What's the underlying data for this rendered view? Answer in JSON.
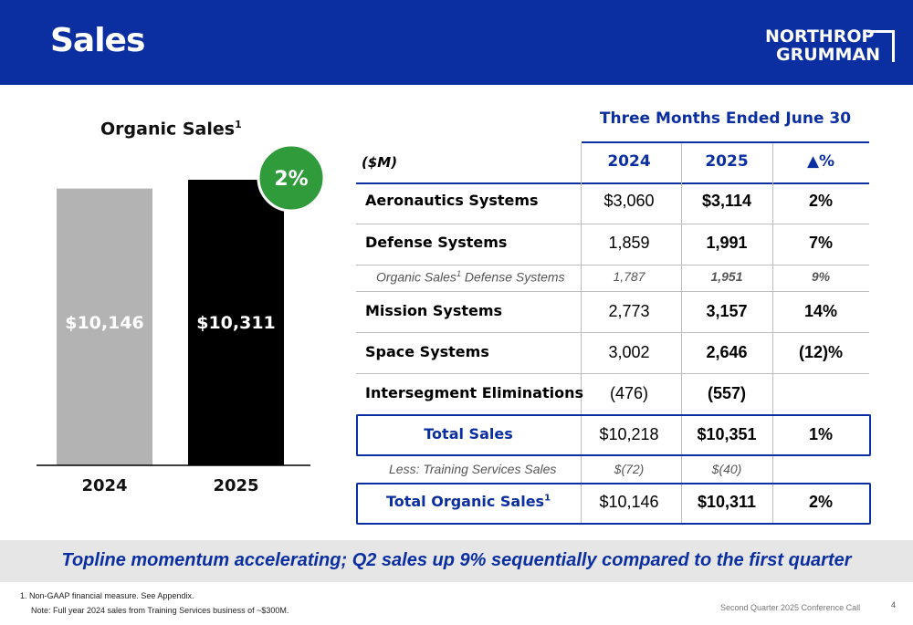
{
  "header": {
    "title": "Sales",
    "logo_line1": "NORTHROP",
    "logo_line2": "GRUMMAN"
  },
  "chart_data": {
    "type": "bar",
    "title": "Organic Sales",
    "title_superscript": "1",
    "categories": [
      "2024",
      "2025"
    ],
    "values": [
      10146,
      10311
    ],
    "value_labels": [
      "$10,146",
      "$10,311"
    ],
    "colors": [
      "#b3b3b3",
      "#000000"
    ],
    "growth_badge": "2%",
    "badge_color": "#2f9b3a"
  },
  "table": {
    "period": "Three Months Ended June 30",
    "unit_label": "($M)",
    "col_2024": "2024",
    "col_2025": "2025",
    "col_pct": "▲%",
    "rows": [
      {
        "label": "Aeronautics Systems",
        "v2024": "$3,060",
        "v2025": "$3,114",
        "pct": "2%"
      },
      {
        "label": "Defense Systems",
        "v2024": "1,859",
        "v2025": "1,991",
        "pct": "7%"
      },
      {
        "label": "Organic Sales",
        "label_sup": "1",
        "label_rest": " Defense Systems",
        "v2024": "1,787",
        "v2025": "1,951",
        "pct": "9%"
      },
      {
        "label": "Mission Systems",
        "v2024": "2,773",
        "v2025": "3,157",
        "pct": "14%"
      },
      {
        "label": "Space Systems",
        "v2024": "3,002",
        "v2025": "2,646",
        "pct": "(12)%"
      },
      {
        "label": "Intersegment Eliminations",
        "v2024": "(476)",
        "v2025": "(557)",
        "pct": ""
      },
      {
        "label": "Total Sales",
        "v2024": "$10,218",
        "v2025": "$10,351",
        "pct": "1%"
      },
      {
        "label": "Less: Training Services Sales",
        "v2024": "$(72)",
        "v2025": "$(40)",
        "pct": ""
      },
      {
        "label": "Total Organic Sales",
        "label_sup": "1",
        "v2024": "$10,146",
        "v2025": "$10,311",
        "pct": "2%"
      }
    ]
  },
  "banner": "Topline momentum accelerating; Q2 sales up 9% sequentially compared to the first quarter",
  "footnotes": {
    "note1": "1.   Non-GAAP financial measure. See Appendix.",
    "note2": "Note:  Full year 2024 sales from Training Services business of ~$300M."
  },
  "footer": {
    "event": "Second Quarter 2025 Conference Call",
    "page": "4"
  }
}
